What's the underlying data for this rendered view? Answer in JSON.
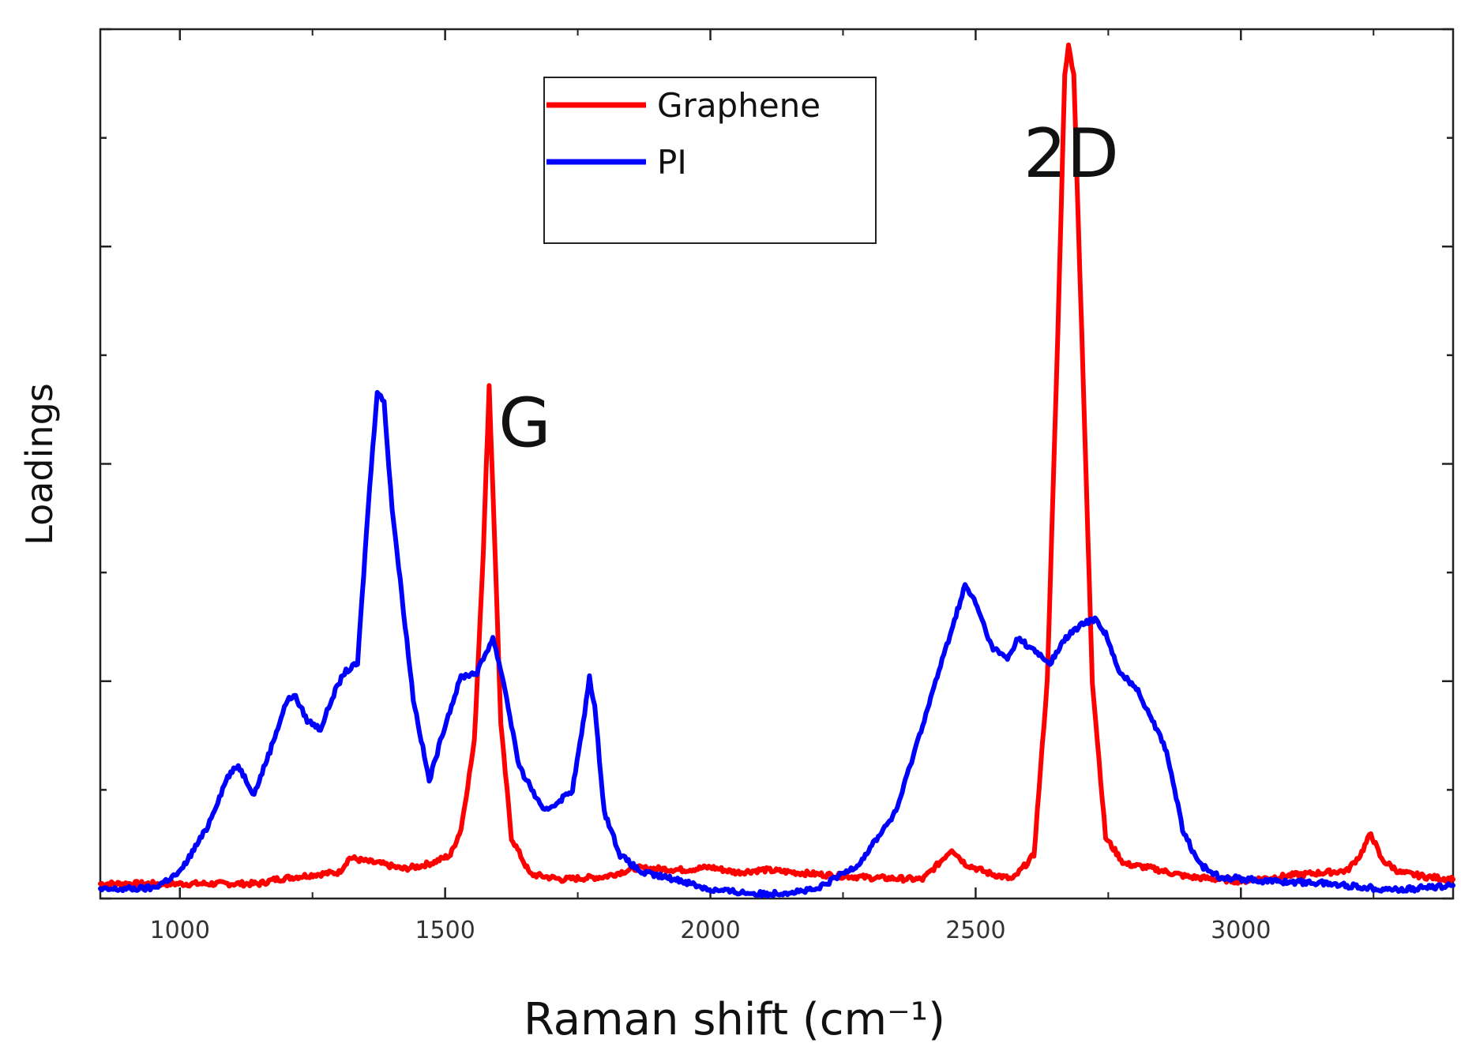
{
  "chart_data": {
    "type": "line",
    "title": "",
    "xlabel": "Raman shift (cm⁻¹)",
    "ylabel": "Loadings",
    "xlim": [
      850,
      3400
    ],
    "ylim": [
      0,
      1
    ],
    "x_ticks": [
      "1000",
      "1500",
      "2000",
      "2500",
      "3000"
    ],
    "grid": false,
    "legend": {
      "position": "top-center",
      "entries": [
        "Graphene",
        "PI"
      ]
    },
    "annotations": [
      {
        "text": "G",
        "x": 1650,
        "y": 0.52
      },
      {
        "text": "2D",
        "x": 2680,
        "y": 0.83
      }
    ],
    "series": [
      {
        "name": "Graphene",
        "color": "#ff0000",
        "points": [
          [
            850,
            0.017
          ],
          [
            1150,
            0.017
          ],
          [
            1180,
            0.022
          ],
          [
            1220,
            0.025
          ],
          [
            1260,
            0.028
          ],
          [
            1300,
            0.03
          ],
          [
            1320,
            0.047
          ],
          [
            1350,
            0.043
          ],
          [
            1380,
            0.04
          ],
          [
            1420,
            0.034
          ],
          [
            1450,
            0.037
          ],
          [
            1480,
            0.042
          ],
          [
            1510,
            0.05
          ],
          [
            1530,
            0.08
          ],
          [
            1555,
            0.18
          ],
          [
            1572,
            0.4
          ],
          [
            1583,
            0.59
          ],
          [
            1593,
            0.42
          ],
          [
            1605,
            0.2
          ],
          [
            1625,
            0.07
          ],
          [
            1660,
            0.028
          ],
          [
            1720,
            0.022
          ],
          [
            1800,
            0.025
          ],
          [
            1860,
            0.035
          ],
          [
            1950,
            0.033
          ],
          [
            2000,
            0.036
          ],
          [
            2050,
            0.03
          ],
          [
            2100,
            0.033
          ],
          [
            2200,
            0.028
          ],
          [
            2300,
            0.024
          ],
          [
            2400,
            0.022
          ],
          [
            2430,
            0.04
          ],
          [
            2455,
            0.057
          ],
          [
            2480,
            0.04
          ],
          [
            2520,
            0.03
          ],
          [
            2570,
            0.022
          ],
          [
            2610,
            0.05
          ],
          [
            2635,
            0.25
          ],
          [
            2655,
            0.65
          ],
          [
            2668,
            0.95
          ],
          [
            2675,
            0.98
          ],
          [
            2685,
            0.95
          ],
          [
            2700,
            0.65
          ],
          [
            2720,
            0.25
          ],
          [
            2745,
            0.07
          ],
          [
            2780,
            0.04
          ],
          [
            2830,
            0.035
          ],
          [
            2900,
            0.025
          ],
          [
            3000,
            0.02
          ],
          [
            3100,
            0.027
          ],
          [
            3200,
            0.032
          ],
          [
            3225,
            0.05
          ],
          [
            3245,
            0.075
          ],
          [
            3265,
            0.045
          ],
          [
            3300,
            0.03
          ],
          [
            3350,
            0.025
          ],
          [
            3400,
            0.022
          ]
        ]
      },
      {
        "name": "PI",
        "color": "#0000ff",
        "points": [
          [
            850,
            0.01
          ],
          [
            950,
            0.012
          ],
          [
            1000,
            0.03
          ],
          [
            1050,
            0.08
          ],
          [
            1090,
            0.14
          ],
          [
            1110,
            0.153
          ],
          [
            1140,
            0.12
          ],
          [
            1170,
            0.17
          ],
          [
            1200,
            0.225
          ],
          [
            1215,
            0.235
          ],
          [
            1240,
            0.205
          ],
          [
            1265,
            0.195
          ],
          [
            1290,
            0.235
          ],
          [
            1310,
            0.26
          ],
          [
            1335,
            0.27
          ],
          [
            1355,
            0.45
          ],
          [
            1372,
            0.585
          ],
          [
            1385,
            0.57
          ],
          [
            1400,
            0.45
          ],
          [
            1440,
            0.23
          ],
          [
            1470,
            0.135
          ],
          [
            1500,
            0.2
          ],
          [
            1530,
            0.255
          ],
          [
            1560,
            0.26
          ],
          [
            1590,
            0.3
          ],
          [
            1610,
            0.25
          ],
          [
            1640,
            0.15
          ],
          [
            1660,
            0.13
          ],
          [
            1685,
            0.1
          ],
          [
            1710,
            0.11
          ],
          [
            1740,
            0.125
          ],
          [
            1760,
            0.2
          ],
          [
            1772,
            0.255
          ],
          [
            1782,
            0.22
          ],
          [
            1800,
            0.1
          ],
          [
            1830,
            0.05
          ],
          [
            1870,
            0.03
          ],
          [
            1950,
            0.02
          ],
          [
            2000,
            0.01
          ],
          [
            2100,
            0.005
          ],
          [
            2200,
            0.01
          ],
          [
            2280,
            0.04
          ],
          [
            2350,
            0.1
          ],
          [
            2400,
            0.2
          ],
          [
            2440,
            0.28
          ],
          [
            2460,
            0.32
          ],
          [
            2480,
            0.36
          ],
          [
            2500,
            0.34
          ],
          [
            2530,
            0.29
          ],
          [
            2560,
            0.275
          ],
          [
            2580,
            0.3
          ],
          [
            2610,
            0.285
          ],
          [
            2640,
            0.27
          ],
          [
            2670,
            0.3
          ],
          [
            2700,
            0.315
          ],
          [
            2725,
            0.322
          ],
          [
            2745,
            0.305
          ],
          [
            2770,
            0.26
          ],
          [
            2800,
            0.245
          ],
          [
            2830,
            0.21
          ],
          [
            2860,
            0.17
          ],
          [
            2890,
            0.08
          ],
          [
            2920,
            0.04
          ],
          [
            2960,
            0.025
          ],
          [
            3050,
            0.02
          ],
          [
            3150,
            0.018
          ],
          [
            3200,
            0.015
          ],
          [
            3250,
            0.012
          ],
          [
            3300,
            0.01
          ],
          [
            3400,
            0.015
          ]
        ]
      }
    ]
  }
}
